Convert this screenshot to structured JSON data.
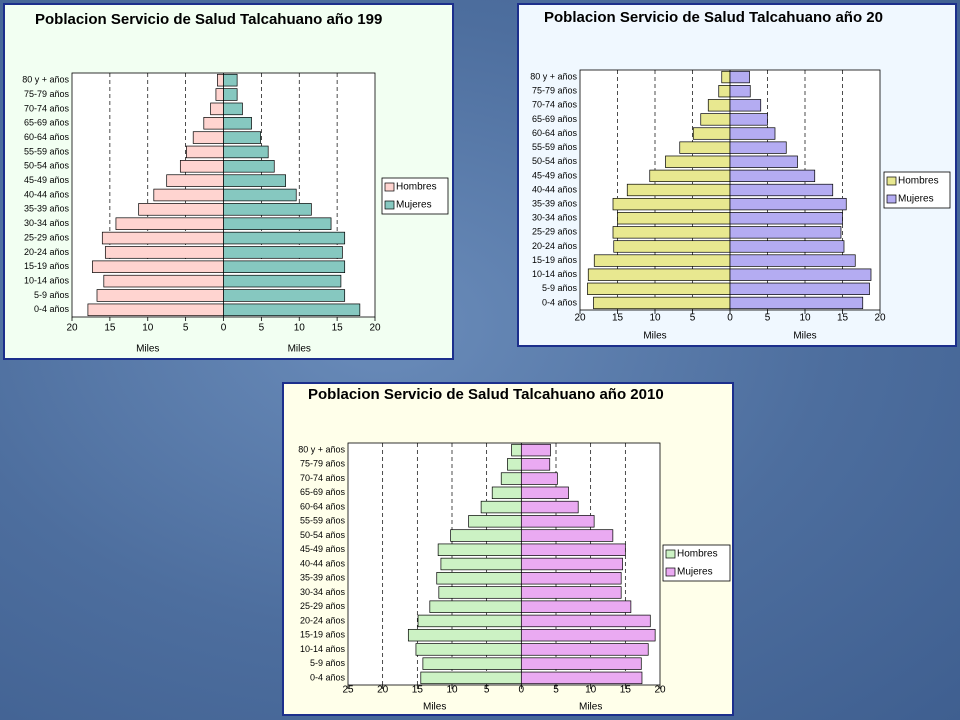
{
  "chart_data": [
    {
      "type": "pyramid",
      "title": "Poblacion Servicio de Salud Talcahuano año 199",
      "categories": [
        "80 y + años",
        "75-79 años",
        "70-74 años",
        "65-69 años",
        "60-64 años",
        "55-59 años",
        "50-54 años",
        "45-49 años",
        "40-44 años",
        "35-39 años",
        "30-34 años",
        "25-29 años",
        "20-24 años",
        "15-19 años",
        "10-14 años",
        "5-9 años",
        "0-4 años"
      ],
      "series": [
        {
          "name": "Hombres",
          "color": "#ffd4d0",
          "side": "left",
          "values": [
            0.8,
            1.0,
            1.7,
            2.6,
            4.0,
            4.9,
            5.7,
            7.5,
            9.2,
            11.2,
            14.2,
            16.0,
            15.6,
            17.3,
            15.8,
            16.7,
            17.9
          ]
        },
        {
          "name": "Mujeres",
          "color": "#86c8c0",
          "side": "right",
          "values": [
            1.8,
            1.8,
            2.5,
            3.7,
            4.9,
            5.9,
            6.7,
            8.2,
            9.6,
            11.6,
            14.2,
            16.0,
            15.7,
            16.0,
            15.5,
            16.0,
            18.0
          ]
        }
      ],
      "xlim": [
        -20,
        20
      ],
      "xticks": [
        {
          "value": -20,
          "label": "20"
        },
        {
          "value": -15,
          "label": "15"
        },
        {
          "value": -10,
          "label": "10"
        },
        {
          "value": -5,
          "label": "5"
        },
        0,
        5,
        10,
        15,
        20
      ],
      "xlabel_left": "Miles",
      "xlabel_right": "Miles",
      "grid": true,
      "background": "#f2fff2"
    },
    {
      "type": "pyramid",
      "title": "Poblacion Servicio de Salud Talcahuano año 20",
      "categories": [
        "80 y + años",
        "75-79 años",
        "70-74 años",
        "65-69 años",
        "60-64 años",
        "55-59 años",
        "50-54 años",
        "45-49 años",
        "40-44 años",
        "35-39 años",
        "30-34 años",
        "25-29 años",
        "20-24 años",
        "15-19 años",
        "10-14 años",
        "5-9 años",
        "0-4 años"
      ],
      "series": [
        {
          "name": "Hombres",
          "color": "#e8e890",
          "side": "left",
          "values": [
            1.1,
            1.5,
            2.9,
            3.9,
            4.9,
            6.7,
            8.6,
            10.7,
            13.7,
            15.6,
            15.0,
            15.6,
            15.5,
            18.1,
            18.9,
            19.0,
            18.2
          ]
        },
        {
          "name": "Mujeres",
          "color": "#b4acf2",
          "side": "right",
          "values": [
            2.6,
            2.7,
            4.1,
            5.0,
            6.0,
            7.5,
            9.0,
            11.3,
            13.7,
            15.5,
            15.0,
            14.8,
            15.2,
            16.7,
            18.8,
            18.6,
            17.7
          ]
        }
      ],
      "xlim": [
        -20,
        20
      ],
      "xticks": [
        {
          "value": -20,
          "label": "20"
        },
        {
          "value": -15,
          "label": "15"
        },
        {
          "value": -10,
          "label": "10"
        },
        {
          "value": -5,
          "label": "5"
        },
        0,
        5,
        10,
        15,
        20
      ],
      "xlabel_left": "Miles",
      "xlabel_right": "Miles",
      "grid": true,
      "background": "#f0f8ff"
    },
    {
      "type": "pyramid",
      "title": "Poblacion Servicio de Salud Talcahuano año 2010",
      "categories": [
        "80 y + años",
        "75-79 años",
        "70-74 años",
        "65-69 años",
        "60-64 años",
        "55-59 años",
        "50-54 años",
        "45-49 años",
        "40-44 años",
        "35-39 años",
        "30-34 años",
        "25-29 años",
        "20-24 años",
        "15-19 años",
        "10-14 años",
        "5-9 años",
        "0-4 años"
      ],
      "series": [
        {
          "name": "Hombres",
          "color": "#ccf2c4",
          "side": "left",
          "values": [
            1.4,
            2.0,
            2.9,
            4.2,
            5.8,
            7.6,
            10.2,
            12.0,
            11.6,
            12.2,
            11.9,
            13.2,
            14.9,
            16.3,
            15.2,
            14.2,
            14.5
          ]
        },
        {
          "name": "Mujeres",
          "color": "#eaaaf2",
          "side": "right",
          "values": [
            4.2,
            4.1,
            5.2,
            6.8,
            8.2,
            10.5,
            13.2,
            15.0,
            14.6,
            14.4,
            14.4,
            15.8,
            18.6,
            19.3,
            18.3,
            17.3,
            17.4
          ]
        }
      ],
      "xlim": [
        -25,
        20
      ],
      "xticks": [
        {
          "value": -25,
          "label": "25"
        },
        {
          "value": -20,
          "label": "20"
        },
        {
          "value": -15,
          "label": "15"
        },
        {
          "value": -10,
          "label": "10"
        },
        {
          "value": -5,
          "label": "5"
        },
        0,
        5,
        10,
        15,
        20
      ],
      "xlabel_left": "Miles",
      "xlabel_right": "Miles",
      "grid": true,
      "background": "#ffffea"
    }
  ]
}
